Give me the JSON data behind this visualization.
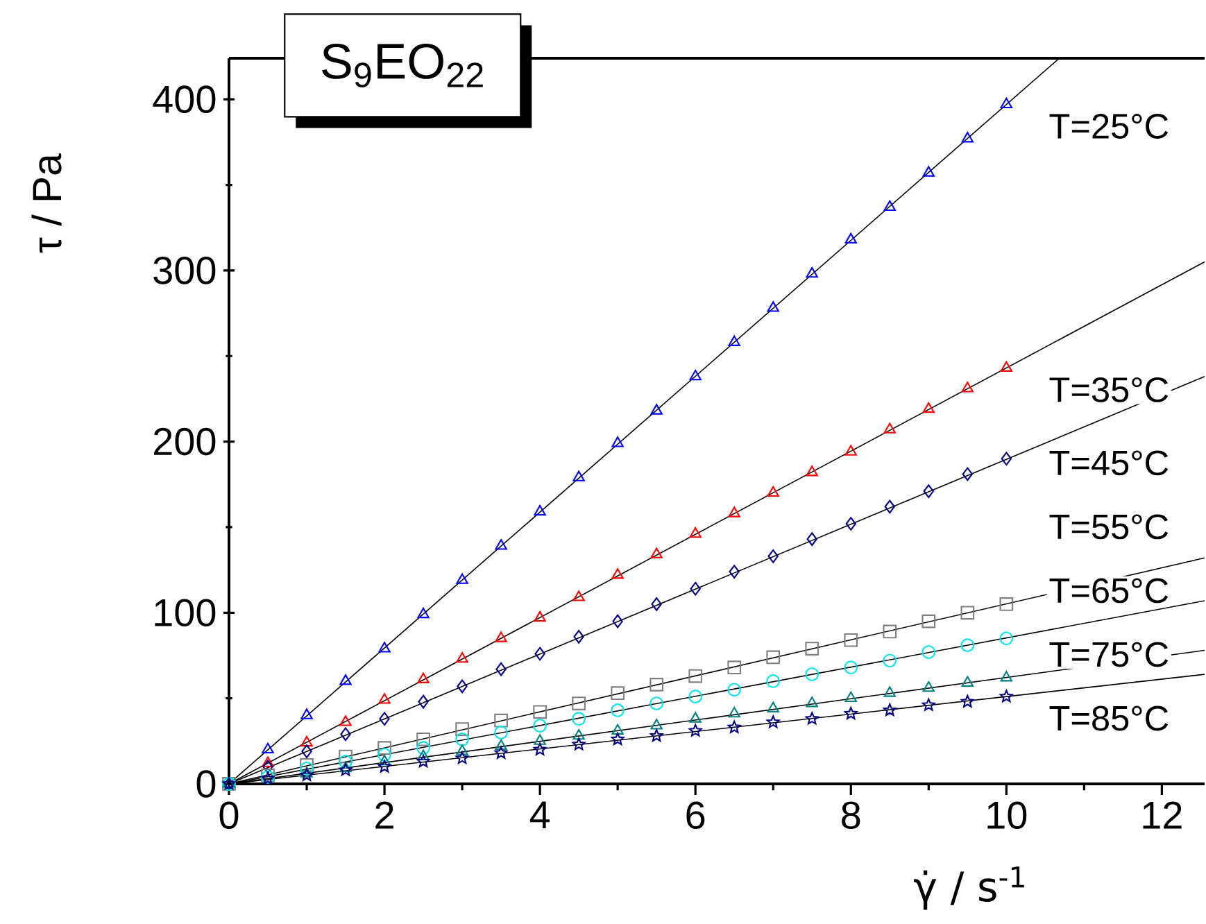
{
  "chart_data": {
    "type": "scatter",
    "title": "S$_{9}$EO$_{22}$",
    "xlabel": "γ̇ / s$^{-1}$",
    "ylabel": "τ  / Pa",
    "xlim": [
      0,
      12.55
    ],
    "ylim": [
      0,
      424
    ],
    "xticks": [
      0,
      2,
      4,
      6,
      8,
      10,
      12
    ],
    "yticks": [
      0,
      100,
      200,
      300,
      400
    ],
    "x": [
      0,
      0.5,
      1,
      1.5,
      2,
      2.5,
      3,
      3.5,
      4,
      4.5,
      5,
      5.5,
      6,
      6.5,
      7,
      7.5,
      8,
      8.5,
      9,
      9.5,
      10
    ],
    "series": [
      {
        "name": "T=25°C",
        "color": "#0000ff",
        "marker": "triangle",
        "values": [
          0,
          20,
          40,
          60,
          79,
          99,
          119,
          139,
          159,
          179,
          199,
          218,
          238,
          258,
          278,
          298,
          318,
          337,
          357,
          377,
          397
        ]
      },
      {
        "name": "T=35°C",
        "color": "#ff0000",
        "marker": "triangle",
        "values": [
          0,
          12,
          24,
          36,
          49,
          61,
          73,
          85,
          97,
          109,
          122,
          134,
          146,
          158,
          170,
          182,
          194,
          207,
          219,
          231,
          243
        ]
      },
      {
        "name": "T=45°C",
        "color": "#000080",
        "marker": "diamond",
        "values": [
          0,
          10,
          19,
          29,
          38,
          48,
          57,
          67,
          76,
          86,
          95,
          105,
          114,
          124,
          133,
          143,
          152,
          162,
          171,
          181,
          190
        ]
      },
      {
        "name": "T=55°C",
        "color": "#808080",
        "marker": "square",
        "values": [
          0,
          5,
          11,
          16,
          21,
          26,
          32,
          37,
          42,
          47,
          53,
          58,
          63,
          68,
          74,
          79,
          84,
          89,
          95,
          100,
          105
        ]
      },
      {
        "name": "T=65°C",
        "color": "#00e5ee",
        "marker": "circle",
        "values": [
          0,
          4,
          9,
          13,
          17,
          21,
          26,
          30,
          34,
          38,
          43,
          47,
          51,
          55,
          60,
          64,
          68,
          72,
          77,
          81,
          85
        ]
      },
      {
        "name": "T=75°C",
        "color": "#008080",
        "marker": "triangle",
        "values": [
          0,
          null,
          6,
          9,
          13,
          16,
          19,
          22,
          25,
          28,
          31,
          34,
          38,
          41,
          44,
          47,
          50,
          53,
          56,
          59,
          62
        ]
      },
      {
        "name": "T=85°C",
        "color": "#000080",
        "marker": "star",
        "values": [
          0,
          3,
          5,
          8,
          10,
          13,
          15,
          18,
          20,
          23,
          26,
          28,
          31,
          33,
          36,
          38,
          41,
          43,
          46,
          48,
          51
        ]
      },
      {
        "type": "line",
        "color": "#000000",
        "marker": "none",
        "x": [
          0,
          10.68
        ],
        "values": [
          0,
          424
        ]
      },
      {
        "type": "line",
        "color": "#000000",
        "marker": "none",
        "x": [
          0,
          12.55
        ],
        "values": [
          0,
          305
        ]
      },
      {
        "type": "line",
        "color": "#000000",
        "marker": "none",
        "x": [
          0,
          12.55
        ],
        "values": [
          0,
          238
        ]
      },
      {
        "type": "line",
        "color": "#000000",
        "marker": "none",
        "x": [
          0,
          12.55
        ],
        "values": [
          0,
          132
        ]
      },
      {
        "type": "line",
        "color": "#000000",
        "marker": "none",
        "x": [
          0,
          12.55
        ],
        "values": [
          0,
          107
        ]
      },
      {
        "type": "line",
        "color": "#000000",
        "marker": "none",
        "x": [
          0,
          12.55
        ],
        "values": [
          0,
          78
        ]
      },
      {
        "type": "line",
        "color": "#000000",
        "marker": "none",
        "x": [
          0,
          12.55
        ],
        "values": [
          0,
          64
        ]
      }
    ]
  }
}
